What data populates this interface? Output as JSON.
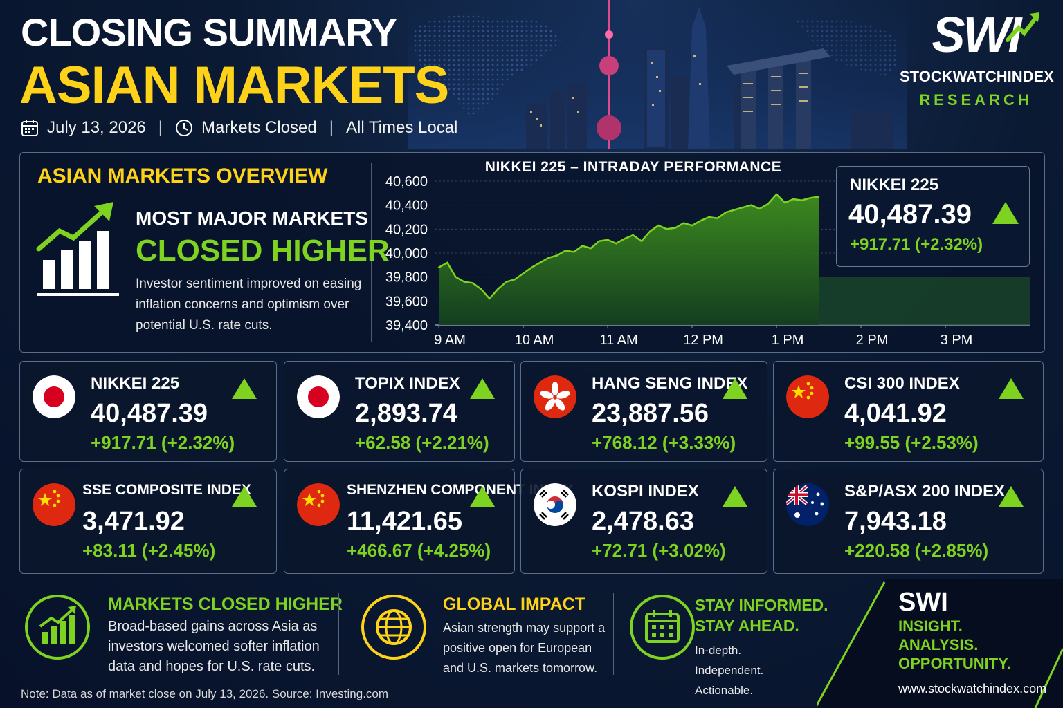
{
  "header": {
    "title_line1": "CLOSING SUMMARY",
    "title_line2": "ASIAN MARKETS",
    "date": "July 13, 2026",
    "status": "Markets Closed",
    "times": "All Times Local"
  },
  "brand": {
    "logo_text": "SWI",
    "name": "STOCKWATCHINDEX",
    "division": "RESEARCH"
  },
  "overview": {
    "heading": "ASIAN MARKETS OVERVIEW",
    "line1": "MOST MAJOR MARKETS",
    "line2": "CLOSED HIGHER",
    "description": "Investor sentiment improved on easing inflation concerns and optimism over potential U.S. rate cuts."
  },
  "chart_data": {
    "type": "area",
    "title": "NIKKEI 225 – INTRADAY PERFORMANCE",
    "x_ticks": [
      "9 AM",
      "10 AM",
      "11 AM",
      "12 PM",
      "1 PM",
      "2 PM",
      "3 PM"
    ],
    "y_ticks": [
      "40,600",
      "40,400",
      "40,200",
      "40,000",
      "39,800",
      "39,600",
      "39,400"
    ],
    "ylim": [
      39400,
      40600
    ],
    "grid": true,
    "x_hours": [
      9.0,
      9.1,
      9.2,
      9.3,
      9.4,
      9.5,
      9.6,
      9.7,
      9.8,
      9.9,
      10.0,
      10.1,
      10.2,
      10.3,
      10.4,
      10.5,
      10.6,
      10.7,
      10.8,
      10.9,
      11.0,
      11.1,
      11.2,
      11.3,
      11.4,
      11.5,
      11.6,
      11.7,
      11.8,
      11.9,
      12.0,
      12.1,
      12.2,
      12.3,
      12.4,
      12.5,
      12.6,
      12.7,
      12.8,
      12.9,
      13.0,
      13.1,
      13.2,
      13.3,
      13.4,
      13.5
    ],
    "values": [
      39880,
      39920,
      39800,
      39760,
      39750,
      39700,
      39620,
      39700,
      39760,
      39780,
      39830,
      39880,
      39920,
      39960,
      39980,
      40020,
      40010,
      40060,
      40040,
      40100,
      40110,
      40080,
      40120,
      40150,
      40100,
      40180,
      40230,
      40200,
      40210,
      40250,
      40230,
      40270,
      40300,
      40290,
      40340,
      40360,
      40380,
      40400,
      40370,
      40410,
      40490,
      40420,
      40450,
      40440,
      40460,
      40470
    ],
    "line_color": "#7ed321"
  },
  "highlight": {
    "name": "NIKKEI 225",
    "value": "40,487.39",
    "change": "+917.71  (+2.32%)"
  },
  "indices": [
    {
      "name": "NIKKEI 225",
      "value": "40,487.39",
      "change": "+917.71  (+2.32%)",
      "flag": "japan"
    },
    {
      "name": "TOPIX INDEX",
      "value": "2,893.74",
      "change": "+62.58  (+2.21%)",
      "flag": "japan"
    },
    {
      "name": "HANG SENG INDEX",
      "value": "23,887.56",
      "change": "+768.12  (+3.33%)",
      "flag": "hong-kong"
    },
    {
      "name": "CSI 300 INDEX",
      "value": "4,041.92",
      "change": "+99.55  (+2.53%)",
      "flag": "china"
    },
    {
      "name": "SSE COMPOSITE INDEX",
      "value": "3,471.92",
      "change": "+83.11  (+2.45%)",
      "flag": "china"
    },
    {
      "name": "SHENZHEN COMPONENT INDEX",
      "value": "11,421.65",
      "change": "+466.67  (+4.25%)",
      "flag": "china"
    },
    {
      "name": "KOSPI INDEX",
      "value": "2,478.63",
      "change": "+72.71  (+3.02%)",
      "flag": "south-korea"
    },
    {
      "name": "S&P/ASX 200 INDEX",
      "value": "7,943.18",
      "change": "+220.58  (+2.85%)",
      "flag": "australia"
    }
  ],
  "bottom": {
    "col1": {
      "heading": "MARKETS CLOSED HIGHER",
      "text": "Broad-based gains across Asia as investors welcomed softer inflation data and hopes for U.S. rate cuts.",
      "icon": "rising-chart-icon"
    },
    "col2": {
      "heading": "GLOBAL IMPACT",
      "text": "Asian strength may support a positive open for European and U.S. markets tomorrow.",
      "icon": "globe-icon"
    },
    "col3": {
      "heading_line1": "STAY INFORMED.",
      "heading_line2": "STAY AHEAD.",
      "text": "In-depth. Independent. Actionable.",
      "icon": "calendar-icon"
    },
    "brand_small": "SWI",
    "tag1": "INSIGHT.",
    "tag2": "ANALYSIS.",
    "tag3": "OPPORTUNITY.",
    "website": "www.stockwatchindex.com",
    "note": "Note: Data as of market close on July 13, 2026. Source: Investing.com"
  },
  "colors": {
    "accent_green": "#7ed321",
    "accent_yellow": "#ffd21a",
    "background": "#0b1a33"
  }
}
